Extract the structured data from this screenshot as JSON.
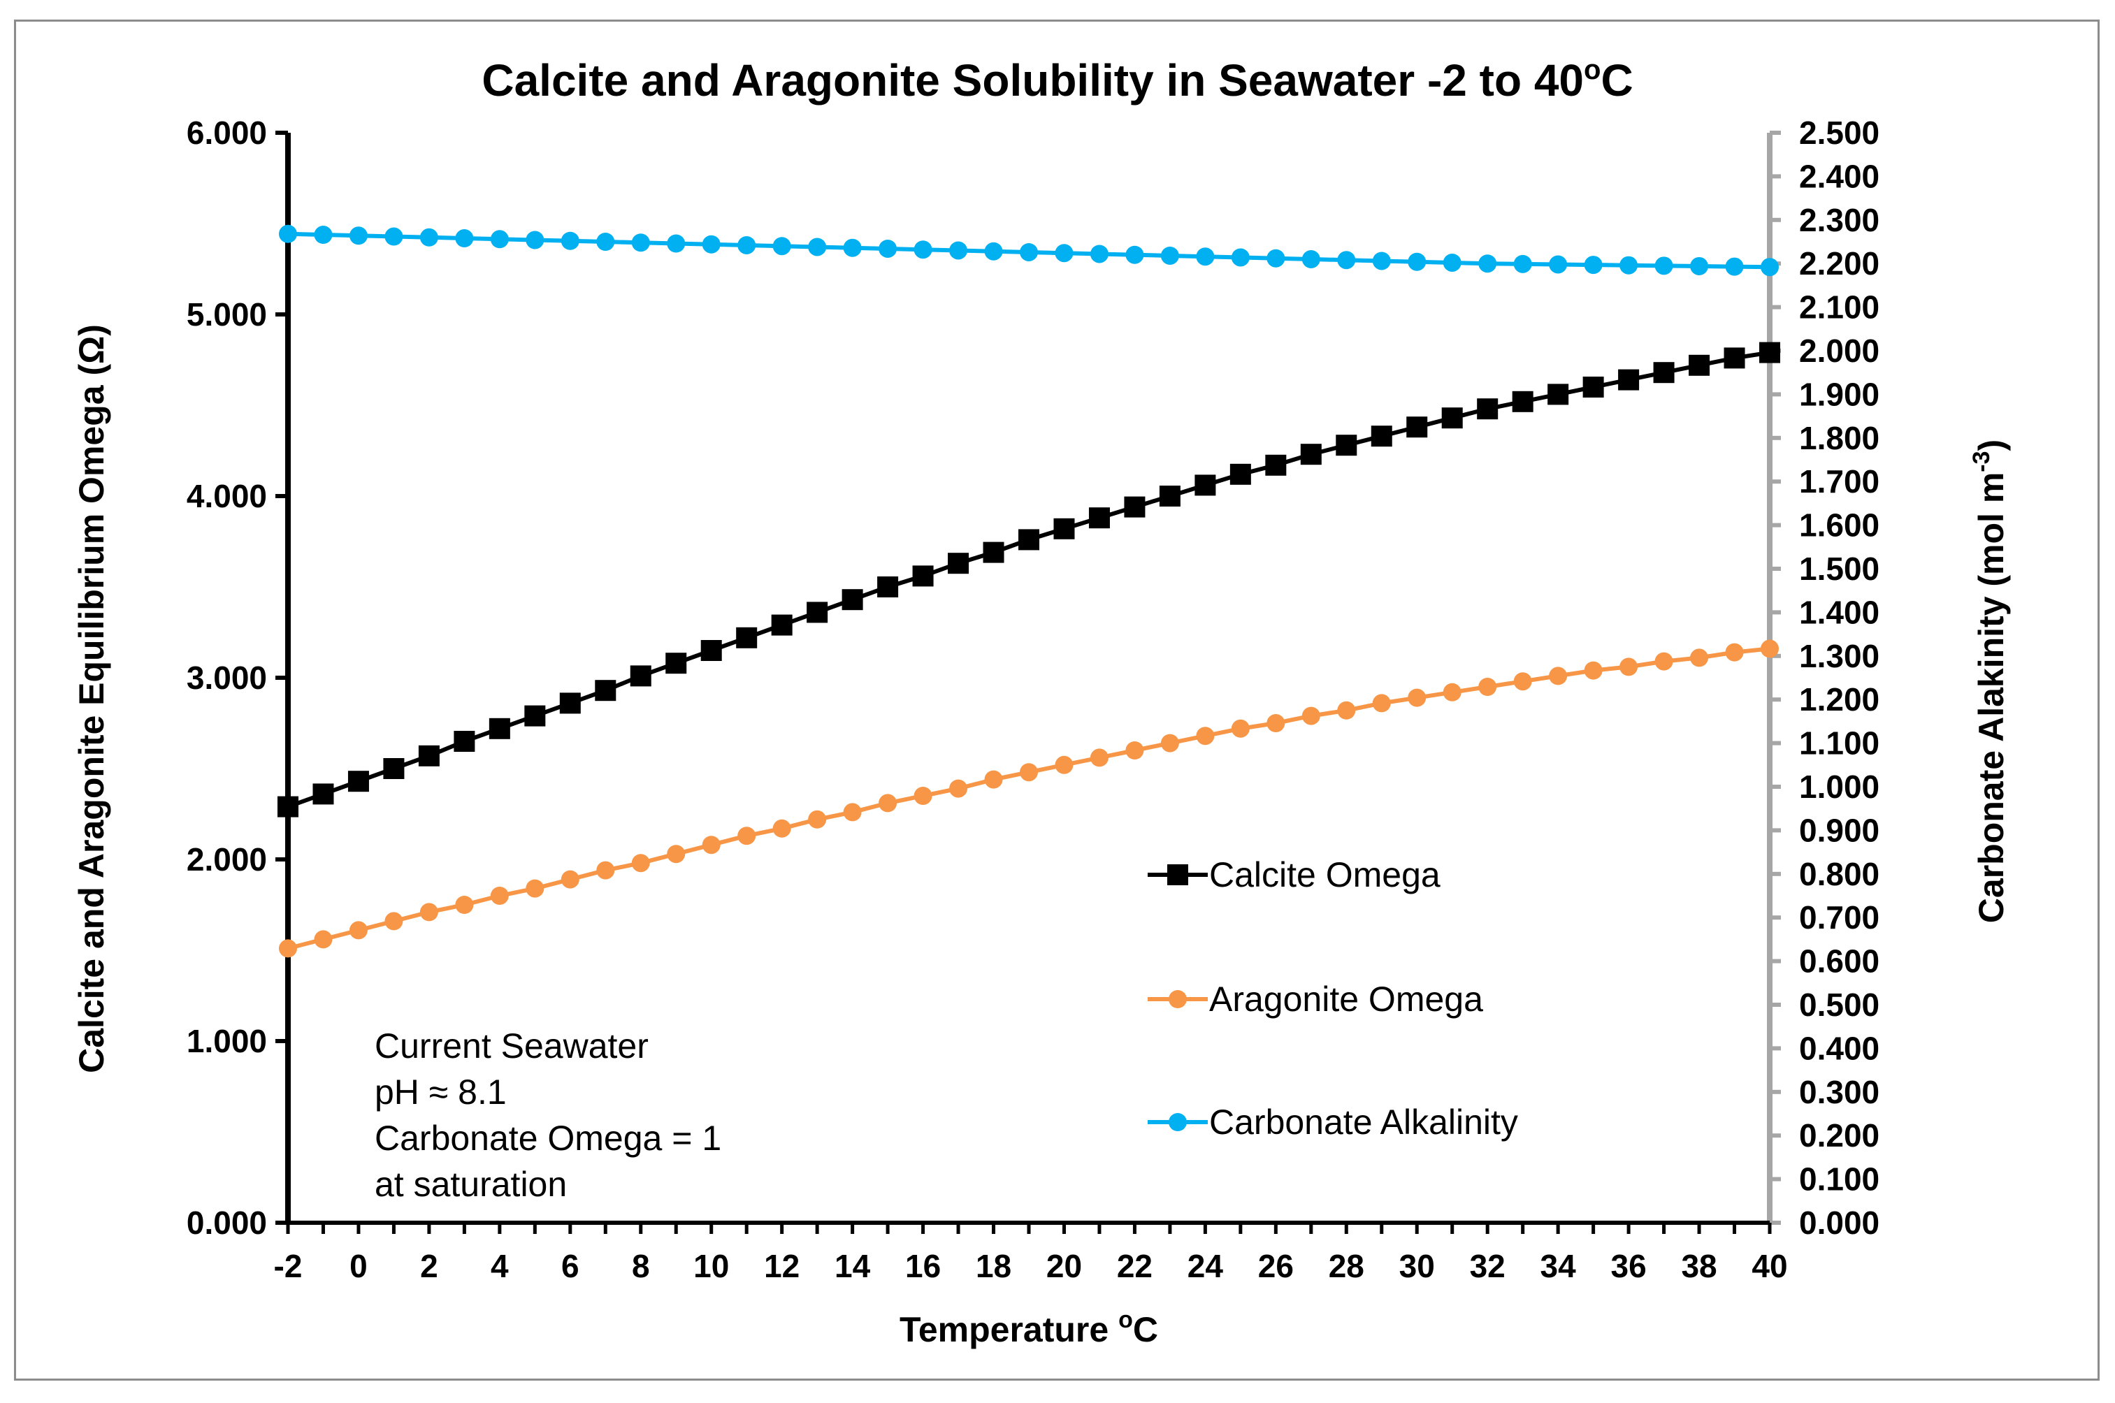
{
  "chart_data": {
    "type": "line",
    "title": "Calcite and Aragonite Solubility in Seawater -2 to 40",
    "title_sup": "o",
    "title_suffix": "C",
    "xlabel": "Temperature ",
    "xlabel_sup": "o",
    "xlabel_suffix": "C",
    "ylabel": "Calcite and Aragonite Equilibrium Omega (Ω)",
    "y2label": "Carbonate Alakinity  (mol m",
    "y2label_sup": "-3",
    "y2label_suffix": ")",
    "xlim": [
      -2,
      40
    ],
    "ylim": [
      0,
      6
    ],
    "y2lim": [
      0,
      2.5
    ],
    "x_ticks": [
      "-2",
      "0",
      "2",
      "4",
      "6",
      "8",
      "10",
      "12",
      "14",
      "16",
      "18",
      "20",
      "22",
      "24",
      "26",
      "28",
      "30",
      "32",
      "34",
      "36",
      "38",
      "40"
    ],
    "y_ticks": [
      "0.000",
      "1.000",
      "2.000",
      "3.000",
      "4.000",
      "5.000",
      "6.000"
    ],
    "y2_ticks": [
      "0.000",
      "0.100",
      "0.200",
      "0.300",
      "0.400",
      "0.500",
      "0.600",
      "0.700",
      "0.800",
      "0.900",
      "1.000",
      "1.100",
      "1.200",
      "1.300",
      "1.400",
      "1.500",
      "1.600",
      "1.700",
      "1.800",
      "1.900",
      "2.000",
      "2.100",
      "2.200",
      "2.300",
      "2.400",
      "2.500"
    ],
    "x": [
      -2,
      -1,
      0,
      1,
      2,
      3,
      4,
      5,
      6,
      7,
      8,
      9,
      10,
      11,
      12,
      13,
      14,
      15,
      16,
      17,
      18,
      19,
      20,
      21,
      22,
      23,
      24,
      25,
      26,
      27,
      28,
      29,
      30,
      31,
      32,
      33,
      34,
      35,
      36,
      37,
      38,
      39,
      40
    ],
    "series": [
      {
        "name": "Calcite Omega",
        "axis": "left",
        "color": "#000000",
        "marker": "square",
        "values": [
          2.29,
          2.36,
          2.43,
          2.5,
          2.57,
          2.65,
          2.72,
          2.79,
          2.86,
          2.93,
          3.01,
          3.08,
          3.15,
          3.22,
          3.29,
          3.36,
          3.43,
          3.5,
          3.56,
          3.63,
          3.69,
          3.76,
          3.82,
          3.88,
          3.94,
          4.0,
          4.06,
          4.12,
          4.17,
          4.23,
          4.28,
          4.33,
          4.38,
          4.43,
          4.48,
          4.52,
          4.56,
          4.6,
          4.64,
          4.68,
          4.72,
          4.76,
          4.79
        ]
      },
      {
        "name": "Aragonite Omega",
        "axis": "left",
        "color": "#f79646",
        "marker": "circle",
        "values": [
          1.51,
          1.56,
          1.61,
          1.66,
          1.71,
          1.75,
          1.8,
          1.84,
          1.89,
          1.94,
          1.98,
          2.03,
          2.08,
          2.13,
          2.17,
          2.22,
          2.26,
          2.31,
          2.35,
          2.39,
          2.44,
          2.48,
          2.52,
          2.56,
          2.6,
          2.64,
          2.68,
          2.72,
          2.75,
          2.79,
          2.82,
          2.86,
          2.89,
          2.92,
          2.95,
          2.98,
          3.01,
          3.04,
          3.06,
          3.09,
          3.11,
          3.14,
          3.16
        ]
      },
      {
        "name": "Carbonate Alkalinity",
        "axis": "right",
        "color": "#00b0f0",
        "marker": "circle",
        "values": [
          2.268,
          2.266,
          2.264,
          2.262,
          2.26,
          2.258,
          2.256,
          2.254,
          2.252,
          2.25,
          2.248,
          2.246,
          2.244,
          2.242,
          2.24,
          2.238,
          2.236,
          2.234,
          2.232,
          2.23,
          2.228,
          2.226,
          2.224,
          2.222,
          2.22,
          2.218,
          2.216,
          2.214,
          2.212,
          2.21,
          2.208,
          2.206,
          2.204,
          2.202,
          2.2,
          2.199,
          2.198,
          2.197,
          2.196,
          2.195,
          2.194,
          2.193,
          2.192
        ]
      }
    ],
    "legend": [
      "Calcite Omega",
      "Aragonite Omega",
      "Carbonate Alkalinity"
    ],
    "legend_placement": "right-center",
    "annotation": [
      "Current Seawater",
      "pH ≈ 8.1",
      "Carbonate Omega = 1",
      "at saturation"
    ],
    "grid": false,
    "colors": {
      "left_axis": "#000000",
      "right_axis": "#a6a6a6",
      "frame": "#8c8c8c"
    }
  }
}
